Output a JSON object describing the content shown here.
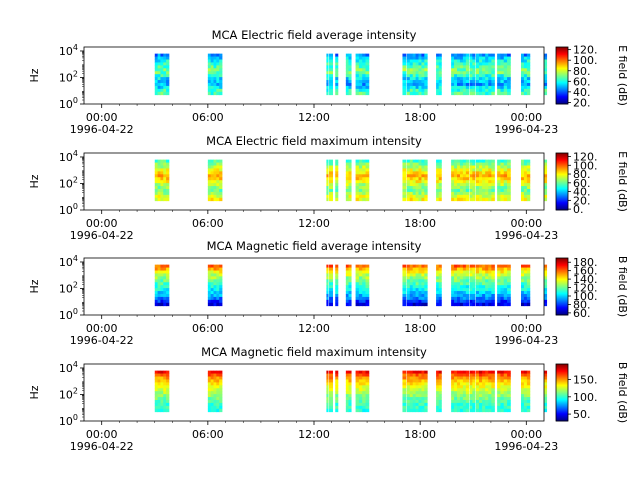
{
  "figure": {
    "instrument": "MCA",
    "start_date": "1996-04-22",
    "end_date": "1996-04-23"
  },
  "chart_data": [
    {
      "type": "heatmap",
      "title": "MCA  Electric field average intensity",
      "ylabel": "Hz",
      "y_scale": "log",
      "y_ticks": [
        "10^0",
        "10^2",
        "10^4"
      ],
      "x_ticks": [
        "00:00",
        "06:00",
        "12:00",
        "18:00",
        "00:00"
      ],
      "x_start_label": "1996-04-22",
      "x_end_label": "1996-04-23",
      "x_range_hours": [
        -1,
        25
      ],
      "colorbar_label": "E field (dB)",
      "colorbar_ticks": [
        20,
        40,
        60,
        80,
        100,
        120
      ],
      "colorbar_range": [
        17,
        125
      ],
      "field": "electric",
      "statistic": "average",
      "bands_db": [
        45,
        52,
        58,
        62,
        66,
        70,
        68,
        62,
        55,
        50,
        48,
        55,
        62,
        65
      ],
      "segments_hours": [
        [
          3.0,
          3.8
        ],
        [
          6.0,
          6.8
        ],
        [
          12.7,
          12.8
        ],
        [
          12.85,
          13.05
        ],
        [
          13.2,
          13.35
        ],
        [
          13.8,
          14.1
        ],
        [
          14.35,
          15.1
        ],
        [
          17.0,
          17.2
        ],
        [
          17.25,
          18.4
        ],
        [
          18.9,
          19.2
        ],
        [
          19.75,
          20.75
        ],
        [
          20.8,
          21.1
        ],
        [
          21.15,
          22.2
        ],
        [
          22.35,
          23.1
        ],
        [
          23.7,
          24.2
        ],
        [
          25.0,
          25.15
        ]
      ],
      "frequency_extent": [
        0.7,
        3.8
      ],
      "colormap": "jet"
    },
    {
      "type": "heatmap",
      "title": "MCA  Electric field maximum intensity",
      "ylabel": "Hz",
      "y_scale": "log",
      "y_ticks": [
        "10^0",
        "10^2",
        "10^4"
      ],
      "x_ticks": [
        "00:00",
        "06:00",
        "12:00",
        "18:00",
        "00:00"
      ],
      "x_start_label": "1996-04-22",
      "x_end_label": "1996-04-23",
      "x_range_hours": [
        -1,
        25
      ],
      "colorbar_label": "E field (dB)",
      "colorbar_ticks": [
        0,
        20,
        40,
        60,
        80,
        100,
        120
      ],
      "colorbar_range": [
        -2,
        128
      ],
      "field": "electric",
      "statistic": "maximum",
      "bands_db": [
        55,
        62,
        70,
        76,
        82,
        88,
        85,
        78,
        70,
        64,
        60,
        66,
        74,
        78
      ],
      "segments_hours": [
        [
          3.0,
          3.8
        ],
        [
          6.0,
          6.8
        ],
        [
          12.7,
          12.8
        ],
        [
          12.85,
          13.05
        ],
        [
          13.2,
          13.35
        ],
        [
          13.8,
          14.1
        ],
        [
          14.35,
          15.1
        ],
        [
          17.0,
          17.2
        ],
        [
          17.25,
          18.4
        ],
        [
          18.9,
          19.2
        ],
        [
          19.75,
          20.75
        ],
        [
          20.8,
          21.1
        ],
        [
          21.15,
          22.2
        ],
        [
          22.35,
          23.1
        ],
        [
          23.7,
          24.2
        ],
        [
          25.0,
          25.15
        ]
      ],
      "frequency_extent": [
        0.7,
        3.8
      ],
      "colormap": "jet"
    },
    {
      "type": "heatmap",
      "title": "MCA  Magnetic field average intensity",
      "ylabel": "Hz",
      "y_scale": "log",
      "y_ticks": [
        "10^0",
        "10^2",
        "10^4"
      ],
      "x_ticks": [
        "00:00",
        "06:00",
        "12:00",
        "18:00",
        "00:00"
      ],
      "x_start_label": "1996-04-22",
      "x_end_label": "1996-04-23",
      "x_range_hours": [
        -1,
        25
      ],
      "colorbar_label": "B field (dB)",
      "colorbar_ticks": [
        60,
        80,
        100,
        120,
        140,
        160,
        180
      ],
      "colorbar_range": [
        55,
        190
      ],
      "field": "magnetic",
      "statistic": "average",
      "bands_db": [
        160,
        150,
        140,
        132,
        126,
        120,
        115,
        110,
        105,
        100,
        95,
        88,
        78,
        68
      ],
      "segments_hours": [
        [
          3.0,
          3.8
        ],
        [
          6.0,
          6.8
        ],
        [
          12.7,
          12.8
        ],
        [
          12.85,
          13.05
        ],
        [
          13.2,
          13.35
        ],
        [
          13.8,
          14.1
        ],
        [
          14.35,
          15.1
        ],
        [
          17.0,
          17.2
        ],
        [
          17.25,
          18.4
        ],
        [
          18.9,
          19.2
        ],
        [
          19.75,
          20.75
        ],
        [
          20.8,
          21.1
        ],
        [
          21.15,
          22.2
        ],
        [
          22.35,
          23.1
        ],
        [
          23.7,
          24.2
        ],
        [
          25.0,
          25.15
        ]
      ],
      "frequency_extent": [
        0.7,
        3.8
      ],
      "colormap": "jet"
    },
    {
      "type": "heatmap",
      "title": "MCA  Magnetic field maximum intensity",
      "ylabel": "Hz",
      "y_scale": "log",
      "y_ticks": [
        "10^0",
        "10^2",
        "10^4"
      ],
      "x_ticks": [
        "00:00",
        "06:00",
        "12:00",
        "18:00",
        "00:00"
      ],
      "x_start_label": "1996-04-22",
      "x_end_label": "1996-04-23",
      "x_range_hours": [
        -1,
        25
      ],
      "colorbar_label": "B field (dB)",
      "colorbar_ticks": [
        50,
        100,
        150
      ],
      "colorbar_range": [
        30,
        195
      ],
      "field": "magnetic",
      "statistic": "maximum",
      "bands_db": [
        175,
        160,
        150,
        142,
        136,
        130,
        125,
        120,
        115,
        110,
        105,
        100,
        100,
        98
      ],
      "segments_hours": [
        [
          3.0,
          3.8
        ],
        [
          6.0,
          6.8
        ],
        [
          12.7,
          12.8
        ],
        [
          12.85,
          13.05
        ],
        [
          13.2,
          13.35
        ],
        [
          13.8,
          14.1
        ],
        [
          14.35,
          15.1
        ],
        [
          17.0,
          17.2
        ],
        [
          17.25,
          18.4
        ],
        [
          18.9,
          19.2
        ],
        [
          19.75,
          20.75
        ],
        [
          20.8,
          21.1
        ],
        [
          21.15,
          22.2
        ],
        [
          22.35,
          23.1
        ],
        [
          23.7,
          24.2
        ],
        [
          25.0,
          25.15
        ]
      ],
      "frequency_extent": [
        0.7,
        3.8
      ],
      "colormap": "jet"
    }
  ]
}
